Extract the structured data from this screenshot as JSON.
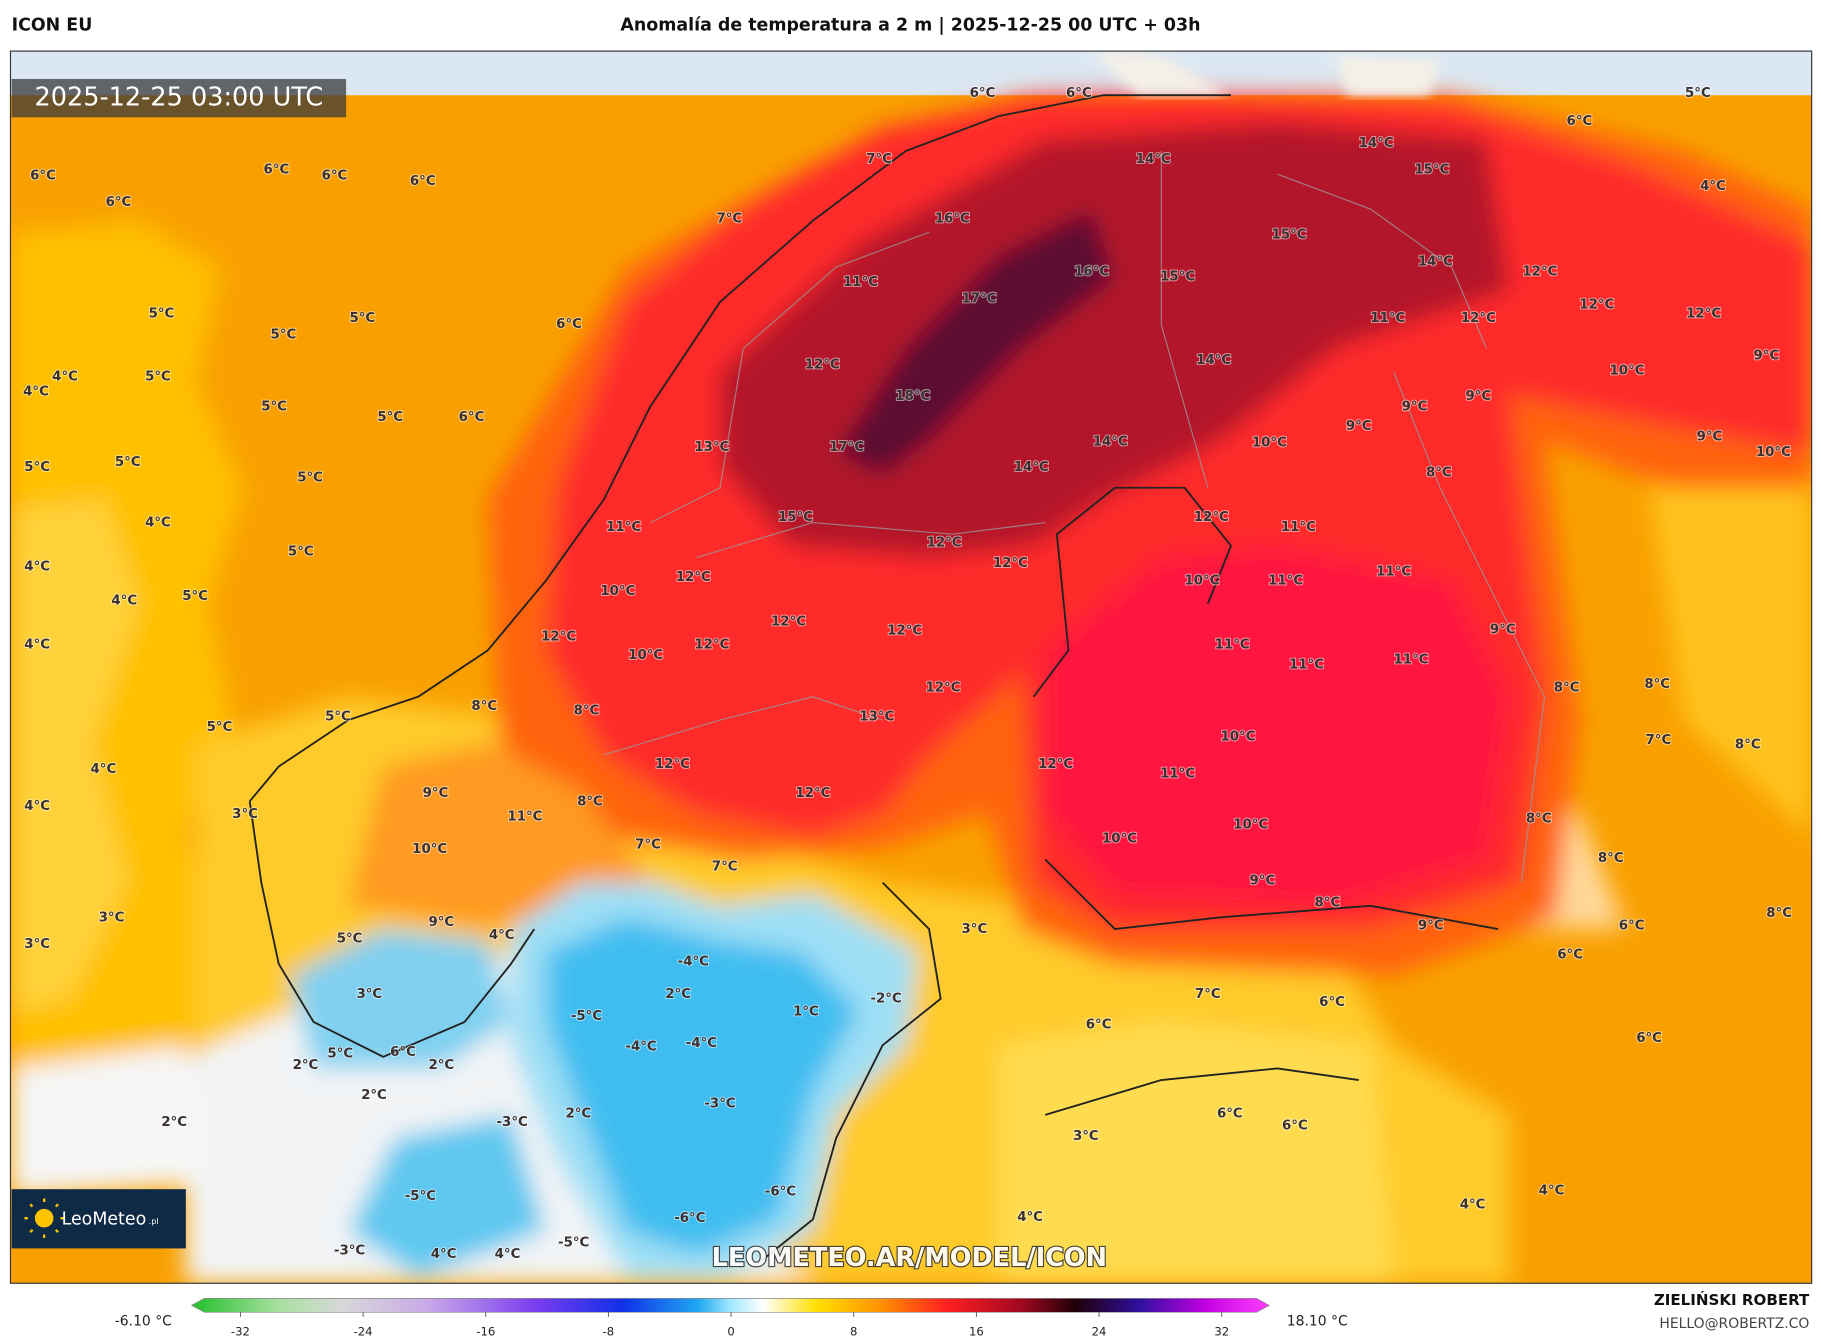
{
  "header": {
    "model": "ICON EU",
    "title": "Anomalía de temperatura a 2 m | 2025-12-25 00 UTC + 03h"
  },
  "map": {
    "timestamp": "2025-12-25 03:00 UTC",
    "watermark": "LEOMETEO.AR/MODEL/ICON",
    "logo": "LeoMeteo",
    "logo_suffix": ".pl",
    "labels": [
      "6°C",
      "6°C",
      "6°C",
      "6°C",
      "6°C",
      "6°C",
      "6°C",
      "5°C",
      "6°C",
      "4°C",
      "7°C",
      "14°C",
      "14°C",
      "15°C",
      "7°C",
      "16°C",
      "15°C",
      "14°C",
      "12°C",
      "16°C",
      "15°C",
      "11°C",
      "17°C",
      "5°C",
      "5°C",
      "6°C",
      "5°C",
      "11°C",
      "12°C",
      "12°C",
      "12°C",
      "9°C",
      "4°C",
      "5°C",
      "4°C",
      "5°C",
      "5°C",
      "6°C",
      "12°C",
      "14°C",
      "10°C",
      "18°C",
      "9°C",
      "9°C",
      "13°C",
      "17°C",
      "14°C",
      "10°C",
      "9°C",
      "9°C",
      "10°C",
      "5°C",
      "5°C",
      "5°C",
      "14°C",
      "8°C",
      "4°C",
      "15°C",
      "12°C",
      "11°C",
      "11°C",
      "12°C",
      "5°C",
      "4°C",
      "12°C",
      "11°C",
      "12°C",
      "10°C",
      "11°C",
      "10°C",
      "5°C",
      "4°C",
      "12°C",
      "12°C",
      "4°C",
      "12°C",
      "12°C",
      "11°C",
      "10°C",
      "11°C",
      "11°C",
      "9°C",
      "12°C",
      "8°C",
      "8°C",
      "5°C",
      "8°C",
      "8°C",
      "13°C",
      "5°C",
      "10°C",
      "7°C",
      "8°C",
      "4°C",
      "12°C",
      "12°C",
      "11°C",
      "12°C",
      "9°C",
      "8°C",
      "4°C",
      "3°C",
      "11°C",
      "8°C",
      "10°C",
      "10°C",
      "7°C",
      "10°C",
      "8°C",
      "7°C",
      "9°C",
      "8°C",
      "8°C",
      "3°C",
      "9°C",
      "4°C",
      "3°C",
      "9°C",
      "6°C",
      "3°C",
      "5°C",
      "-4°C",
      "6°C",
      "2°C",
      "3°C",
      "-2°C",
      "7°C",
      "6°C",
      "-5°C",
      "1°C",
      "6°C",
      "-4°C",
      "-4°C",
      "5°C",
      "6°C",
      "6°C",
      "2°C",
      "2°C",
      "2°C",
      "-3°C",
      "2°C",
      "6°C",
      "2°C",
      "-3°C",
      "6°C",
      "3°C",
      "-6°C",
      "-5°C",
      "4°C",
      "4°C",
      "4°C",
      "-6°C",
      "-5°C",
      "-3°C",
      "4°C",
      "4°C"
    ]
  },
  "colorbar": {
    "min_label": "-6.10 °C",
    "max_label": "18.10 °C",
    "ticks": [
      -32,
      -24,
      -16,
      -8,
      0,
      8,
      16,
      24,
      32
    ]
  },
  "credit": {
    "author": "ZIELIŃSKI ROBERT",
    "email": "HELLO@ROBERTZ.CO"
  }
}
